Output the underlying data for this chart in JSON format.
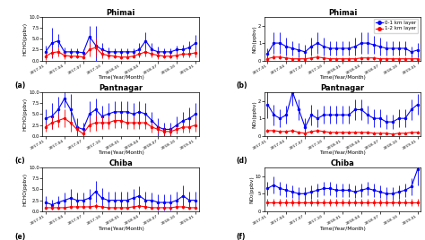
{
  "time_labels": [
    "2017-01",
    "2017-04",
    "2017-07",
    "2017-10",
    "2018-01",
    "2018-04",
    "2018-07",
    "2018-10",
    "2019-01"
  ],
  "n_points": 25,
  "blue_color": "#0000FF",
  "red_color": "#FF0000",
  "legend_labels": [
    "0-1 km layer",
    "1-2 km layer"
  ],
  "panel_labels": [
    "(a)",
    "(b)",
    "(c)",
    "(d)",
    "(e)",
    "(f)"
  ],
  "titles_left": [
    "Phimai",
    "Pantnagar",
    "Chiba"
  ],
  "titles_right": [
    "Phimai",
    "Pantnagar",
    "Chiba"
  ],
  "ylabel_left": "HCHO(ppbv)",
  "ylabel_right": "NO₂(ppbv)",
  "xlabel": "Time(Year/Month)",
  "ylim_hcho": [
    0,
    10
  ],
  "ylim_no2_phimai": [
    0,
    2.5
  ],
  "ylim_no2_pantnagar": [
    0,
    2.5
  ],
  "ylim_no2_chiba": [
    0,
    12.5
  ],
  "phimai_hcho_blue_mean": [
    2.0,
    4.0,
    4.5,
    2.0,
    2.0,
    2.0,
    1.8,
    5.5,
    3.5,
    2.5,
    2.0,
    2.0,
    2.0,
    2.0,
    2.0,
    2.5,
    4.5,
    2.5,
    2.0,
    2.0,
    2.0,
    2.5,
    2.5,
    3.0,
    4.0
  ],
  "phimai_hcho_blue_err": [
    1.5,
    3.5,
    1.5,
    1.0,
    0.8,
    0.8,
    0.8,
    2.5,
    4.5,
    1.5,
    1.0,
    0.8,
    0.8,
    0.8,
    0.8,
    1.5,
    2.0,
    1.5,
    1.2,
    0.8,
    0.8,
    1.0,
    1.2,
    1.5,
    1.8
  ],
  "phimai_hcho_red_mean": [
    1.0,
    1.8,
    2.0,
    1.2,
    1.0,
    1.0,
    0.8,
    2.5,
    3.0,
    1.5,
    1.2,
    1.0,
    0.8,
    0.8,
    1.0,
    1.5,
    2.0,
    1.5,
    1.2,
    1.0,
    1.0,
    1.2,
    1.5,
    1.5,
    1.8
  ],
  "phimai_hcho_red_err": [
    0.8,
    1.0,
    1.0,
    0.8,
    0.5,
    0.5,
    0.5,
    1.5,
    2.0,
    1.0,
    0.8,
    0.5,
    0.5,
    0.5,
    0.5,
    0.8,
    1.0,
    0.8,
    0.8,
    0.5,
    0.5,
    0.8,
    0.8,
    0.8,
    1.0
  ],
  "phimai_no2_blue_mean": [
    0.4,
    1.0,
    1.0,
    0.8,
    0.7,
    0.6,
    0.5,
    0.8,
    1.0,
    0.8,
    0.7,
    0.7,
    0.7,
    0.7,
    0.8,
    1.0,
    1.0,
    0.9,
    0.8,
    0.7,
    0.7,
    0.7,
    0.7,
    0.5,
    0.6
  ],
  "phimai_no2_blue_err": [
    0.3,
    0.6,
    0.6,
    0.5,
    0.4,
    0.4,
    0.4,
    0.5,
    0.6,
    0.5,
    0.4,
    0.4,
    0.4,
    0.4,
    0.5,
    0.6,
    0.6,
    0.5,
    0.5,
    0.4,
    0.4,
    0.4,
    0.4,
    0.3,
    0.4
  ],
  "phimai_no2_red_mean": [
    0.1,
    0.2,
    0.2,
    0.15,
    0.1,
    0.1,
    0.1,
    0.15,
    0.2,
    0.15,
    0.1,
    0.1,
    0.1,
    0.1,
    0.1,
    0.15,
    0.15,
    0.15,
    0.1,
    0.1,
    0.1,
    0.1,
    0.1,
    0.1,
    0.1
  ],
  "phimai_no2_red_err": [
    0.1,
    0.12,
    0.12,
    0.1,
    0.08,
    0.08,
    0.08,
    0.1,
    0.12,
    0.1,
    0.08,
    0.08,
    0.08,
    0.08,
    0.08,
    0.1,
    0.1,
    0.1,
    0.08,
    0.08,
    0.08,
    0.08,
    0.08,
    0.08,
    0.08
  ],
  "pantnagar_hcho_blue_mean": [
    4.0,
    4.5,
    6.0,
    8.5,
    6.0,
    2.0,
    1.5,
    5.0,
    6.0,
    4.5,
    5.0,
    5.5,
    5.5,
    5.5,
    5.0,
    5.5,
    5.0,
    3.5,
    2.0,
    1.5,
    1.5,
    2.5,
    3.5,
    4.0,
    5.0
  ],
  "pantnagar_hcho_blue_err": [
    2.0,
    3.0,
    3.0,
    2.0,
    3.5,
    2.0,
    1.5,
    3.0,
    2.5,
    2.5,
    2.5,
    2.5,
    2.5,
    2.5,
    2.5,
    2.5,
    2.5,
    2.0,
    2.0,
    1.5,
    1.5,
    2.0,
    2.0,
    2.5,
    2.5
  ],
  "pantnagar_hcho_red_mean": [
    2.0,
    3.0,
    3.5,
    4.0,
    3.0,
    1.5,
    0.5,
    2.5,
    3.0,
    3.0,
    3.0,
    3.5,
    3.5,
    3.0,
    3.0,
    3.0,
    3.0,
    2.0,
    1.5,
    1.0,
    1.0,
    1.5,
    2.0,
    2.0,
    2.5
  ],
  "pantnagar_hcho_red_err": [
    1.0,
    1.5,
    1.5,
    2.0,
    2.0,
    1.5,
    0.8,
    1.5,
    1.8,
    1.5,
    1.5,
    1.8,
    1.8,
    1.5,
    1.5,
    1.5,
    1.5,
    1.2,
    1.0,
    0.8,
    0.8,
    1.0,
    1.2,
    1.2,
    1.5
  ],
  "pantnagar_no2_blue_mean": [
    1.8,
    1.2,
    1.0,
    1.2,
    2.5,
    1.5,
    0.5,
    1.2,
    1.0,
    1.2,
    1.2,
    1.2,
    1.2,
    1.2,
    1.5,
    1.5,
    1.2,
    1.0,
    1.0,
    0.8,
    0.8,
    1.0,
    1.0,
    1.5,
    1.8
  ],
  "pantnagar_no2_blue_err": [
    0.8,
    0.6,
    0.5,
    0.5,
    0.8,
    0.6,
    0.5,
    0.6,
    0.5,
    0.5,
    0.5,
    0.5,
    0.5,
    0.5,
    0.6,
    0.6,
    0.5,
    0.5,
    0.5,
    0.4,
    0.4,
    0.5,
    0.5,
    0.6,
    0.6
  ],
  "pantnagar_no2_red_mean": [
    0.3,
    0.3,
    0.25,
    0.25,
    0.3,
    0.2,
    0.15,
    0.25,
    0.3,
    0.25,
    0.2,
    0.2,
    0.2,
    0.2,
    0.2,
    0.2,
    0.2,
    0.15,
    0.15,
    0.15,
    0.1,
    0.15,
    0.15,
    0.2,
    0.2
  ],
  "pantnagar_no2_red_err": [
    0.1,
    0.1,
    0.1,
    0.1,
    0.12,
    0.08,
    0.08,
    0.1,
    0.12,
    0.1,
    0.08,
    0.08,
    0.08,
    0.08,
    0.08,
    0.08,
    0.08,
    0.08,
    0.08,
    0.08,
    0.08,
    0.08,
    0.08,
    0.08,
    0.08
  ],
  "chiba_hcho_blue_mean": [
    2.0,
    1.5,
    2.0,
    2.5,
    3.0,
    2.5,
    2.5,
    3.0,
    4.5,
    3.0,
    2.5,
    2.5,
    2.5,
    2.5,
    3.0,
    3.5,
    2.5,
    2.5,
    2.0,
    2.0,
    2.0,
    2.5,
    3.5,
    2.5,
    2.5
  ],
  "chiba_hcho_blue_err": [
    1.5,
    1.2,
    1.5,
    1.8,
    2.0,
    1.8,
    1.8,
    2.0,
    2.5,
    2.2,
    2.0,
    2.0,
    2.0,
    2.0,
    2.0,
    2.2,
    2.0,
    1.8,
    1.8,
    1.8,
    1.8,
    2.0,
    2.5,
    2.0,
    2.0
  ],
  "chiba_hcho_red_mean": [
    0.8,
    0.8,
    0.8,
    0.8,
    1.0,
    1.0,
    1.0,
    1.0,
    1.2,
    1.0,
    0.8,
    0.8,
    0.8,
    0.8,
    1.0,
    1.2,
    1.0,
    0.8,
    0.8,
    0.8,
    0.8,
    1.0,
    1.0,
    0.8,
    0.8
  ],
  "chiba_hcho_red_err": [
    0.4,
    0.4,
    0.4,
    0.4,
    0.5,
    0.5,
    0.5,
    0.5,
    0.6,
    0.5,
    0.4,
    0.4,
    0.4,
    0.4,
    0.5,
    0.6,
    0.5,
    0.4,
    0.4,
    0.4,
    0.4,
    0.5,
    0.5,
    0.4,
    0.4
  ],
  "chiba_no2_blue_mean": [
    6.5,
    7.5,
    6.5,
    6.0,
    5.5,
    5.0,
    5.0,
    5.5,
    6.0,
    6.5,
    6.5,
    6.0,
    6.0,
    6.0,
    5.5,
    6.0,
    6.5,
    6.0,
    5.5,
    5.0,
    5.0,
    5.5,
    6.0,
    7.0,
    12.0
  ],
  "chiba_no2_blue_err": [
    2.0,
    2.5,
    2.0,
    2.0,
    1.8,
    1.8,
    1.8,
    2.0,
    2.0,
    2.0,
    2.0,
    2.0,
    2.0,
    2.0,
    1.8,
    2.0,
    2.0,
    2.0,
    1.8,
    1.8,
    1.8,
    2.0,
    2.0,
    2.5,
    4.5
  ],
  "chiba_no2_red_mean": [
    2.5,
    2.5,
    2.5,
    2.5,
    2.5,
    2.5,
    2.5,
    2.5,
    2.5,
    2.5,
    2.5,
    2.5,
    2.5,
    2.5,
    2.5,
    2.5,
    2.5,
    2.5,
    2.5,
    2.5,
    2.5,
    2.5,
    2.5,
    2.5,
    2.5
  ],
  "chiba_no2_red_err": [
    1.0,
    1.0,
    1.0,
    1.0,
    1.0,
    1.0,
    1.0,
    1.0,
    1.0,
    1.0,
    1.0,
    1.0,
    1.0,
    1.0,
    1.0,
    1.0,
    1.0,
    1.0,
    1.0,
    1.0,
    1.0,
    1.0,
    1.0,
    1.0,
    1.0
  ]
}
